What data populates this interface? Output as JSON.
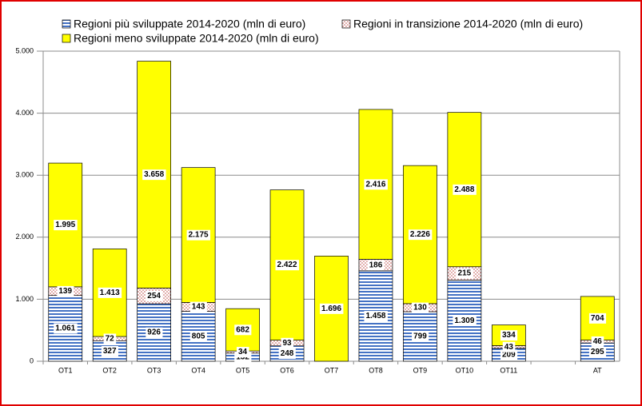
{
  "chart_data": {
    "type": "stacked-bar",
    "categories": [
      "OT1",
      "OT2",
      "OT3",
      "OT4",
      "OT5",
      "OT6",
      "OT7",
      "OT8",
      "OT9",
      "OT10",
      "OT11",
      null,
      "AT"
    ],
    "series": [
      {
        "name": "Regioni più sviluppate 2014-2020 (mln di euro)",
        "color": "#4472c4",
        "pattern": "stripes",
        "values": [
          1061,
          327,
          926,
          805,
          132,
          248,
          null,
          1458,
          799,
          1309,
          209,
          null,
          295
        ],
        "value_labels": [
          "1.061",
          "327",
          "926",
          "805",
          "132",
          "248",
          null,
          "1.458",
          "799",
          "1.309",
          "209",
          null,
          "295"
        ]
      },
      {
        "name": "Regioni in transizione 2014-2020 (mln di euro)",
        "color": "#c0504d",
        "pattern": "dots",
        "values": [
          139,
          72,
          254,
          143,
          34,
          93,
          null,
          186,
          130,
          215,
          43,
          null,
          46
        ],
        "value_labels": [
          "139",
          "72",
          "254",
          "143",
          "34",
          "93",
          null,
          "186",
          "130",
          "215",
          "43",
          null,
          "46"
        ]
      },
      {
        "name": "Regioni meno sviluppate 2014-2020 (mln di euro)",
        "color": "#ffff00",
        "pattern": "solid",
        "values": [
          1995,
          1413,
          3658,
          2175,
          682,
          2422,
          1696,
          2416,
          2226,
          2488,
          334,
          null,
          704
        ],
        "value_labels": [
          "1.995",
          "1.413",
          "3.658",
          "2.175",
          "682",
          "2.422",
          "1.696",
          "2.416",
          "2.226",
          "2.488",
          "334",
          null,
          "704"
        ]
      }
    ],
    "ylim": [
      0,
      5000
    ],
    "yticks": [
      0,
      {
        "value": 1000,
        "label": "1.000"
      },
      {
        "value": 2000,
        "label": "2.000"
      },
      {
        "value": 3000,
        "label": "3.000"
      },
      {
        "value": 4000,
        "label": "4.000"
      },
      {
        "value": 5000,
        "label": "5.000"
      }
    ],
    "grid": true
  }
}
